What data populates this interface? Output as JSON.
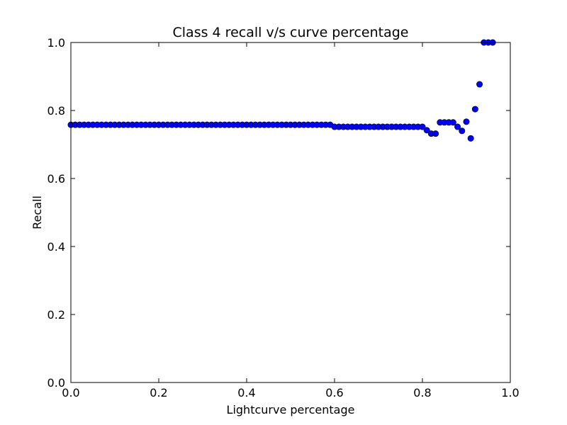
{
  "chart_data": {
    "type": "scatter",
    "title": "Class 4 recall v/s curve percentage",
    "xlabel": "Lightcurve percentage",
    "ylabel": "Recall",
    "xlim": [
      0.0,
      1.0
    ],
    "ylim": [
      0.0,
      1.0
    ],
    "xticks": [
      "0.0",
      "0.2",
      "0.4",
      "0.6",
      "0.8",
      "1.0"
    ],
    "yticks": [
      "0.0",
      "0.2",
      "0.4",
      "0.6",
      "0.8",
      "1.0"
    ],
    "grid": false,
    "marker_color": "#0000ff",
    "marker_edge_color": "#000000",
    "series": [
      {
        "x": [
          0.0,
          0.01,
          0.02,
          0.03,
          0.04,
          0.05,
          0.06,
          0.07,
          0.08,
          0.09,
          0.1,
          0.11,
          0.12,
          0.13,
          0.14,
          0.15,
          0.16,
          0.17,
          0.18,
          0.19,
          0.2,
          0.21,
          0.22,
          0.23,
          0.24,
          0.25,
          0.26,
          0.27,
          0.28,
          0.29,
          0.3,
          0.31,
          0.32,
          0.33,
          0.34,
          0.35,
          0.36,
          0.37,
          0.38,
          0.39,
          0.4,
          0.41,
          0.42,
          0.43,
          0.44,
          0.45,
          0.46,
          0.47,
          0.48,
          0.49,
          0.5,
          0.51,
          0.52,
          0.53,
          0.54,
          0.55,
          0.56,
          0.57,
          0.58,
          0.59,
          0.6,
          0.61,
          0.62,
          0.63,
          0.64,
          0.65,
          0.66,
          0.67,
          0.68,
          0.69,
          0.7,
          0.71,
          0.72,
          0.73,
          0.74,
          0.75,
          0.76,
          0.77,
          0.78,
          0.79,
          0.8,
          0.81,
          0.82,
          0.83,
          0.84,
          0.85,
          0.86,
          0.87,
          0.88,
          0.89,
          0.9,
          0.91,
          0.92,
          0.93,
          0.94,
          0.95,
          0.96
        ],
        "y": [
          0.758,
          0.758,
          0.758,
          0.758,
          0.758,
          0.758,
          0.758,
          0.758,
          0.758,
          0.758,
          0.758,
          0.758,
          0.758,
          0.758,
          0.758,
          0.758,
          0.758,
          0.758,
          0.758,
          0.758,
          0.758,
          0.758,
          0.758,
          0.758,
          0.758,
          0.758,
          0.758,
          0.758,
          0.758,
          0.758,
          0.758,
          0.758,
          0.758,
          0.758,
          0.758,
          0.758,
          0.758,
          0.758,
          0.758,
          0.758,
          0.758,
          0.758,
          0.758,
          0.758,
          0.758,
          0.758,
          0.758,
          0.758,
          0.758,
          0.758,
          0.758,
          0.758,
          0.758,
          0.758,
          0.758,
          0.758,
          0.758,
          0.758,
          0.758,
          0.758,
          0.752,
          0.752,
          0.752,
          0.752,
          0.752,
          0.752,
          0.752,
          0.752,
          0.752,
          0.752,
          0.752,
          0.752,
          0.752,
          0.752,
          0.752,
          0.752,
          0.752,
          0.752,
          0.752,
          0.752,
          0.752,
          0.742,
          0.732,
          0.732,
          0.765,
          0.765,
          0.765,
          0.765,
          0.752,
          0.74,
          0.767,
          0.718,
          0.804,
          0.877,
          1.0,
          1.0,
          1.0
        ]
      }
    ]
  }
}
